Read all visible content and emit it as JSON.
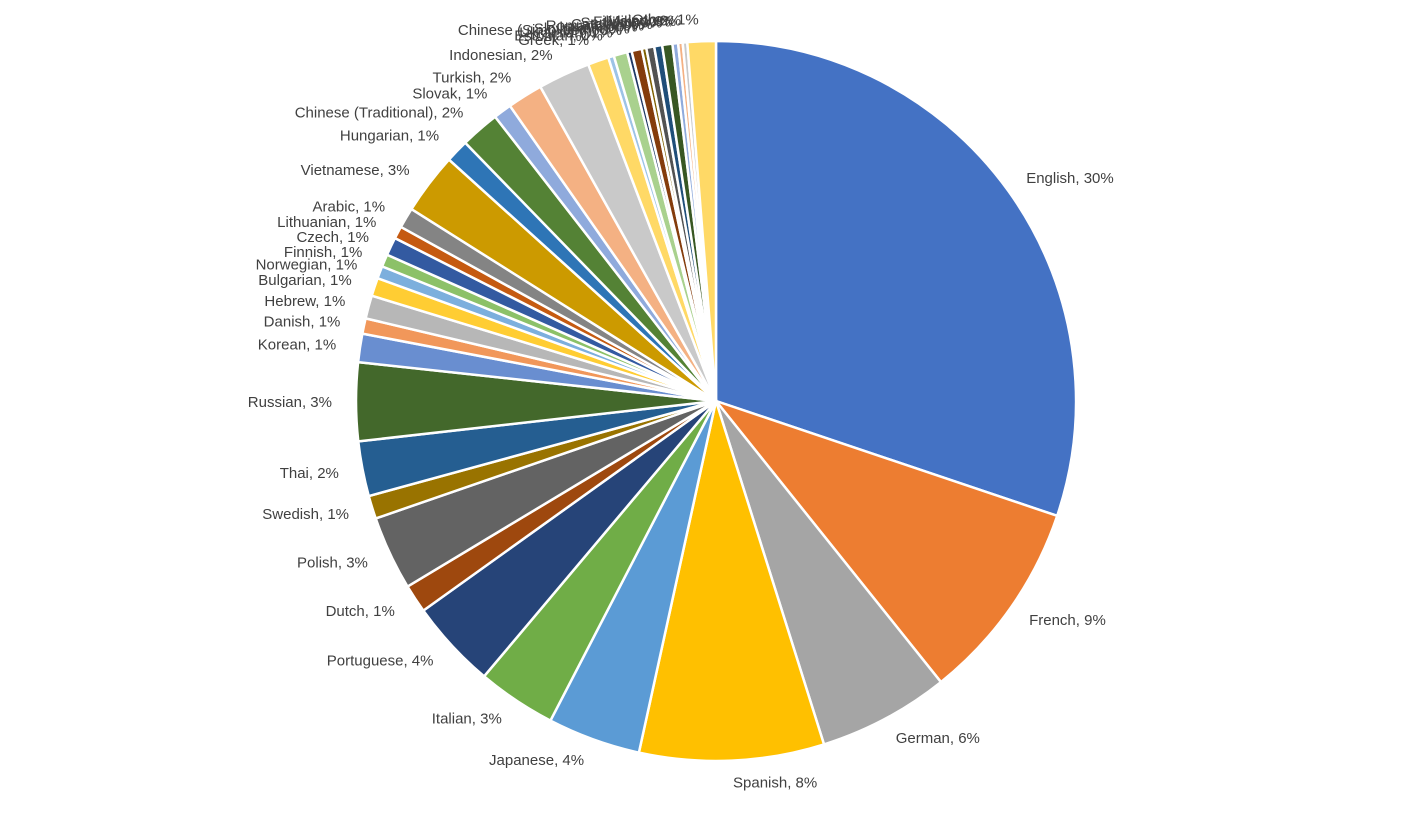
{
  "chart_data": {
    "type": "pie",
    "title": "",
    "label_format": "{name}, {pct}",
    "slices": [
      {
        "name": "English",
        "value": 29.64,
        "label": "30%",
        "color": "#4472C4",
        "label_side": "right"
      },
      {
        "name": "French",
        "value": 8.93,
        "label": "9%",
        "color": "#ED7D31",
        "label_side": "right"
      },
      {
        "name": "German",
        "value": 5.79,
        "label": "6%",
        "color": "#A5A5A5",
        "label_side": "right"
      },
      {
        "name": "Spanish",
        "value": 8.14,
        "label": "8%",
        "color": "#FFC000",
        "label_side": "right"
      },
      {
        "name": "Japanese",
        "value": 4.1,
        "label": "4%",
        "color": "#5B9BD5",
        "label_side": "left"
      },
      {
        "name": "Italian",
        "value": 3.47,
        "label": "3%",
        "color": "#70AD47",
        "label_side": "left"
      },
      {
        "name": "Portuguese",
        "value": 3.9,
        "label": "4%",
        "color": "#264478",
        "label_side": "left"
      },
      {
        "name": "Dutch",
        "value": 1.25,
        "label": "1%",
        "color": "#9E480E",
        "label_side": "left"
      },
      {
        "name": "Polish",
        "value": 3.27,
        "label": "3%",
        "color": "#636363",
        "label_side": "left"
      },
      {
        "name": "Swedish",
        "value": 1.02,
        "label": "1%",
        "color": "#997300",
        "label_side": "left"
      },
      {
        "name": "Thai",
        "value": 2.42,
        "label": "2%",
        "color": "#255E91",
        "label_side": "left"
      },
      {
        "name": "Russian",
        "value": 3.45,
        "label": "3%",
        "color": "#43682B",
        "label_side": "left"
      },
      {
        "name": "Korean",
        "value": 1.25,
        "label": "1%",
        "color": "#698ED0",
        "label_side": "left"
      },
      {
        "name": "Danish",
        "value": 0.68,
        "label": "1%",
        "color": "#F1975A",
        "label_side": "left"
      },
      {
        "name": "Hebrew",
        "value": 1.02,
        "label": "1%",
        "color": "#B7B7B7",
        "label_side": "left"
      },
      {
        "name": "Bulgarian",
        "value": 0.8,
        "label": "1%",
        "color": "#FFCD33",
        "label_side": "left"
      },
      {
        "name": "Norwegian",
        "value": 0.55,
        "label": "1%",
        "color": "#7CAFDD",
        "label_side": "left"
      },
      {
        "name": "Finnish",
        "value": 0.55,
        "label": "1%",
        "color": "#8CC168",
        "label_side": "left"
      },
      {
        "name": "Czech",
        "value": 0.8,
        "label": "1%",
        "color": "#335AA1",
        "label_side": "left"
      },
      {
        "name": "Lithuanian",
        "value": 0.55,
        "label": "1%",
        "color": "#C55A11",
        "label_side": "left"
      },
      {
        "name": "Arabic",
        "value": 0.9,
        "label": "1%",
        "color": "#848484",
        "label_side": "left"
      },
      {
        "name": "Vietnamese",
        "value": 2.7,
        "label": "3%",
        "color": "#CC9A00",
        "label_side": "left"
      },
      {
        "name": "Hungarian",
        "value": 1.02,
        "label": "1%",
        "color": "#2E75B6",
        "label_side": "left"
      },
      {
        "name": "Chinese (Traditional)",
        "value": 1.72,
        "label": "2%",
        "color": "#548235",
        "label_side": "left"
      },
      {
        "name": "Slovak",
        "value": 0.8,
        "label": "1%",
        "color": "#8FAADC",
        "label_side": "left"
      },
      {
        "name": "Turkish",
        "value": 1.56,
        "label": "2%",
        "color": "#F4B183",
        "label_side": "left"
      },
      {
        "name": "Indonesian",
        "value": 2.3,
        "label": "2%",
        "color": "#C9C9C9",
        "label_side": "left"
      },
      {
        "name": "Greek",
        "value": 0.92,
        "label": "1%",
        "color": "#FFD966",
        "label_side": "left"
      },
      {
        "name": "Estonian",
        "value": 0.25,
        "label": "0%",
        "color": "#9DC3E6",
        "label_side": "left"
      },
      {
        "name": "Ukrainian",
        "value": 0.6,
        "label": "1%",
        "color": "#A9D18E",
        "label_side": "left"
      },
      {
        "name": "Chinese (Simplified)",
        "value": 0.2,
        "label": "0%",
        "color": "#1F3864",
        "label_side": "left"
      },
      {
        "name": "Slovenian",
        "value": 0.45,
        "label": "0%",
        "color": "#843C0C",
        "label_side": "left"
      },
      {
        "name": "Latvian",
        "value": 0.2,
        "label": "0%",
        "color": "#7F6000",
        "label_side": "left"
      },
      {
        "name": "Romanian",
        "value": 0.35,
        "label": "0%",
        "color": "#525252",
        "label_side": "left"
      },
      {
        "name": "Catalan",
        "value": 0.35,
        "label": "0%",
        "color": "#1F4E79",
        "label_side": "left"
      },
      {
        "name": "Serbian",
        "value": 0.45,
        "label": "0%",
        "color": "#385723",
        "label_side": "left"
      },
      {
        "name": "Filipino",
        "value": 0.25,
        "label": "0%",
        "color": "#8FAADC",
        "label_side": "left"
      },
      {
        "name": "Malay",
        "value": 0.2,
        "label": "0%",
        "color": "#F4B183",
        "label_side": "left"
      },
      {
        "name": "Hindi",
        "value": 0.2,
        "label": "0%",
        "color": "#C9C9C9",
        "label_side": "left"
      },
      {
        "name": "Other",
        "value": 1.25,
        "label": "1%",
        "color": "#FFD966",
        "label_side": "left"
      }
    ]
  }
}
